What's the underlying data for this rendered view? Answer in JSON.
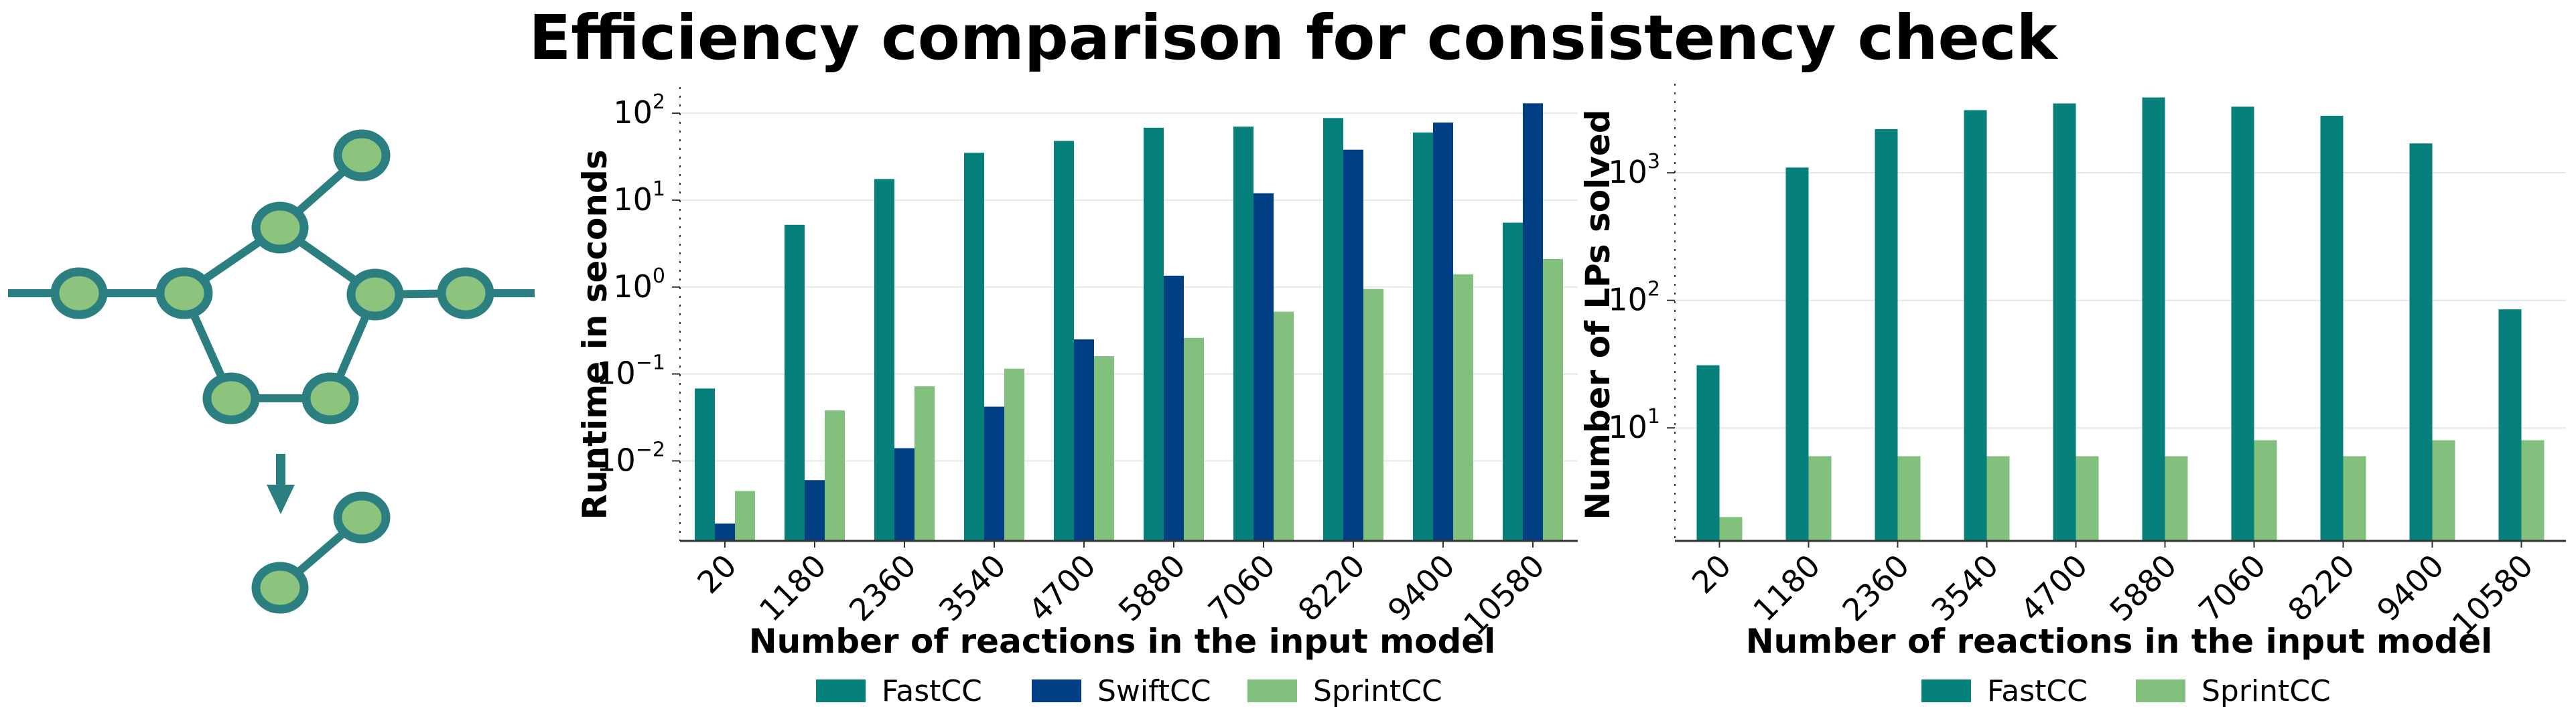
{
  "title": "Efficiency comparison for consistency check",
  "colors": {
    "FastCC": "#05807a",
    "SwiftCC": "#003f84",
    "SprintCC": "#82c07e",
    "network_node_fill": "#8cc47e",
    "network_edge": "#2b7f80",
    "grid": "#e6e6e6"
  },
  "legend_left": {
    "labels": [
      "FastCC",
      "SwiftCC",
      "SprintCC"
    ],
    "placement": "bottom-center"
  },
  "legend_right": {
    "labels": [
      "FastCC",
      "SprintCC"
    ],
    "placement": "bottom-center"
  },
  "chart_data": [
    {
      "type": "bar",
      "yscale": "log",
      "grid": "horizontal",
      "ylim": [
        0.0012,
        200
      ],
      "xlabel": "Number of reactions in the input model",
      "ylabel": "Runtime in seconds",
      "categories": [
        "20",
        "1180",
        "2360",
        "3540",
        "4700",
        "5880",
        "7060",
        "8220",
        "9400",
        "10580"
      ],
      "yticks": [
        {
          "base": "10",
          "exp": "−2",
          "value": 0.01
        },
        {
          "base": "10",
          "exp": "−1",
          "value": 0.1
        },
        {
          "base": "10",
          "exp": "0",
          "value": 1
        },
        {
          "base": "10",
          "exp": "1",
          "value": 10
        },
        {
          "base": "10",
          "exp": "2",
          "value": 100
        }
      ],
      "series": [
        {
          "name": "FastCC",
          "values": [
            0.068,
            5.2,
            17.5,
            35,
            48,
            68,
            70,
            88,
            60,
            5.5
          ]
        },
        {
          "name": "SwiftCC",
          "values": [
            0.0019,
            0.006,
            0.014,
            0.042,
            0.25,
            1.35,
            12,
            38,
            78,
            130
          ]
        },
        {
          "name": "SprintCC",
          "values": [
            0.0045,
            0.038,
            0.072,
            0.115,
            0.16,
            0.26,
            0.52,
            0.95,
            1.4,
            2.1
          ]
        }
      ]
    },
    {
      "type": "bar",
      "yscale": "log",
      "grid": "horizontal",
      "ylim": [
        1.3,
        5000
      ],
      "xlabel": "Number of reactions in the input model",
      "ylabel": "Number of LPs solved",
      "categories": [
        "20",
        "1180",
        "2360",
        "3540",
        "4700",
        "5880",
        "7060",
        "8220",
        "9400",
        "10580"
      ],
      "yticks": [
        {
          "base": "10",
          "exp": "1",
          "value": 10
        },
        {
          "base": "10",
          "exp": "2",
          "value": 100
        },
        {
          "base": "10",
          "exp": "3",
          "value": 1000
        }
      ],
      "series": [
        {
          "name": "FastCC",
          "values": [
            31,
            1100,
            2200,
            3100,
            3500,
            3900,
            3300,
            2800,
            1700,
            85
          ]
        },
        {
          "name": "SprintCC",
          "values": [
            2,
            6,
            6,
            6,
            6,
            6,
            8,
            6,
            8,
            8
          ]
        }
      ]
    }
  ]
}
